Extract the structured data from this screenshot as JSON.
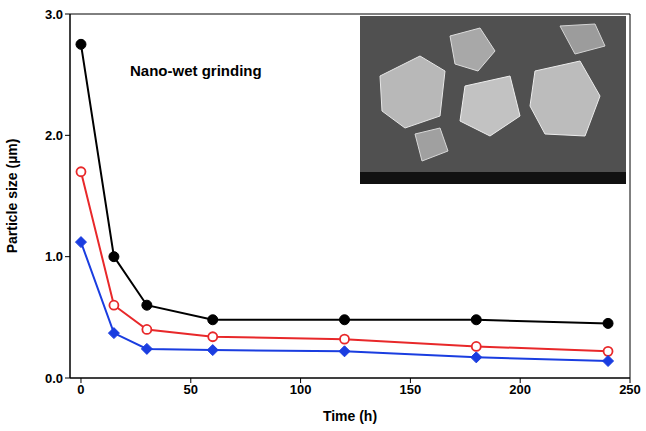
{
  "chart_data": {
    "type": "line",
    "annotation": "Nano-wet grinding",
    "x_label": "Time (h)",
    "y_label": "Particle size (µm)",
    "x": [
      0,
      15,
      30,
      60,
      120,
      180,
      240
    ],
    "series": [
      {
        "color": "#000000",
        "marker": "circle",
        "values": [
          2.75,
          1.0,
          0.6,
          0.48,
          0.48,
          0.48,
          0.45
        ]
      },
      {
        "color": "#e8282a",
        "marker": "open_circle",
        "values": [
          1.7,
          0.6,
          0.4,
          0.34,
          0.32,
          0.26,
          0.22
        ]
      },
      {
        "color": "#1a3de0",
        "marker": "diamond",
        "values": [
          1.12,
          0.37,
          0.24,
          0.23,
          0.22,
          0.17,
          0.14
        ]
      }
    ],
    "xlim": [
      -5,
      250
    ],
    "xticks": [
      0,
      50,
      100,
      150,
      200,
      250
    ],
    "ylim": [
      0,
      3.0
    ],
    "yticks": [
      {
        "value": 0,
        "label": "0.0"
      },
      {
        "value": 1,
        "label": "1.0"
      },
      {
        "value": 2,
        "label": "2.0"
      },
      {
        "value": 3,
        "label": "3.0"
      }
    ],
    "grid": false
  }
}
